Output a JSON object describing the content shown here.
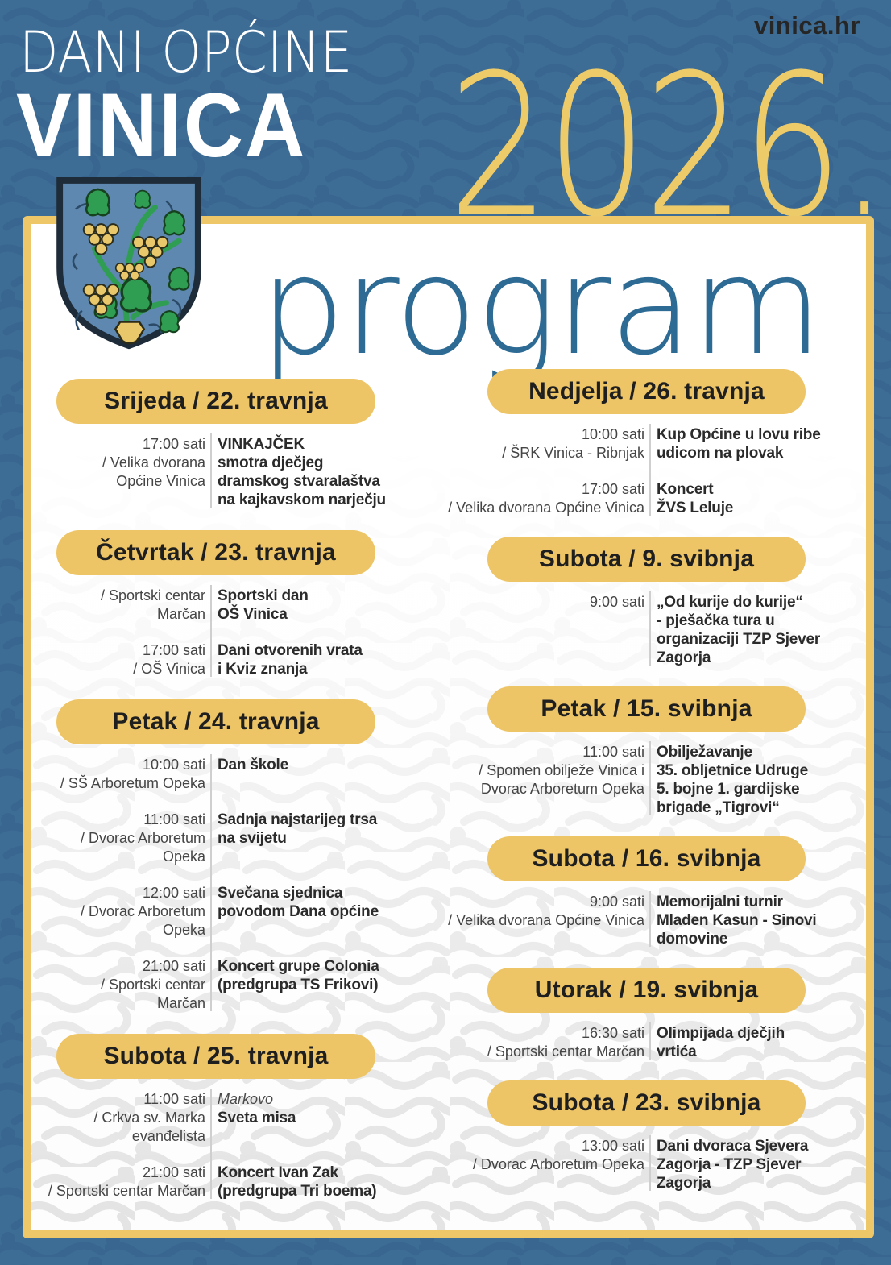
{
  "site_link": "vinica.hr",
  "header": {
    "kicker": "DANI OPĆINE",
    "title": "VINICA",
    "year": "2026.",
    "program_word": "program"
  },
  "theme": {
    "background_blue": "#3d6c95",
    "pattern_blue": "#34618b",
    "accent_yellow": "#edc566",
    "frame_yellow": "#eec768",
    "heading_blue": "#2e6b94",
    "text_dark": "#2b2b2b"
  },
  "emblem_icon": "vinica-coat-of-arms",
  "columns": {
    "left": {
      "sections": [
        {
          "date": "Srijeda / 22. travnja",
          "events": [
            {
              "time": "17:00 sati",
              "location": "/ Velika dvorana\nOpćine Vinica",
              "pretitle": "",
              "title": "VINKAJČEK\nsmotra dječjeg\ndramskog stvaralaštva\nna kajkavskom narječju"
            }
          ]
        },
        {
          "date": "Četvrtak / 23. travnja",
          "events": [
            {
              "time": "",
              "location": "/ Sportski centar\nMarčan",
              "pretitle": "",
              "title": "Sportski dan\nOŠ Vinica"
            },
            {
              "time": "17:00 sati",
              "location": "/ OŠ Vinica",
              "pretitle": "",
              "title": "Dani otvorenih vrata\ni Kviz znanja"
            }
          ]
        },
        {
          "date": "Petak / 24. travnja",
          "events": [
            {
              "time": "10:00 sati",
              "location": "/ SŠ Arboretum Opeka",
              "pretitle": "",
              "title": "Dan škole"
            },
            {
              "time": "11:00 sati",
              "location": "/ Dvorac Arboretum\nOpeka",
              "pretitle": "",
              "title": "Sadnja najstarijeg trsa\nna svijetu"
            },
            {
              "time": "12:00 sati",
              "location": "/ Dvorac Arboretum\nOpeka",
              "pretitle": "",
              "title": "Svečana sjednica\npovodom Dana općine"
            },
            {
              "time": "21:00 sati",
              "location": "/ Sportski centar\nMarčan",
              "pretitle": "",
              "title": "Koncert grupe Colonia\n(predgrupa TS Frikovi)"
            }
          ]
        },
        {
          "date": "Subota / 25. travnja",
          "events": [
            {
              "time": "11:00 sati",
              "location": "/ Crkva sv. Marka\nevanđelista",
              "pretitle": "Markovo",
              "title": "Sveta misa"
            },
            {
              "time": "21:00 sati",
              "location": "/ Sportski centar Marčan",
              "pretitle": "",
              "title": "Koncert Ivan Zak\n(predgrupa Tri boema)"
            }
          ]
        }
      ]
    },
    "right": {
      "sections": [
        {
          "date": "Nedjelja / 26. travnja",
          "events": [
            {
              "time": "10:00 sati",
              "location": "/ ŠRK Vinica - Ribnjak",
              "pretitle": "",
              "title": "Kup Općine u lovu ribe\nudicom na plovak"
            },
            {
              "time": "17:00 sati",
              "location": "/ Velika dvorana Općine Vinica",
              "pretitle": "",
              "title": "Koncert\nŽVS Leluje"
            }
          ]
        },
        {
          "date": "Subota / 9. svibnja",
          "events": [
            {
              "time": "9:00 sati",
              "location": "",
              "pretitle": "",
              "title": "„Od kurije do kurije“\n- pješačka tura u\norganizaciji TZP Sjever\nZagorja"
            }
          ]
        },
        {
          "date": "Petak / 15. svibnja",
          "events": [
            {
              "time": "11:00 sati",
              "location": "/ Spomen obilježe Vinica i\nDvorac Arboretum Opeka",
              "pretitle": "",
              "title": "Obilježavanje\n35. obljetnice Udruge\n5. bojne 1. gardijske\nbrigade „Tigrovi“"
            }
          ]
        },
        {
          "date": "Subota / 16. svibnja",
          "events": [
            {
              "time": "9:00 sati",
              "location": "/ Velika dvorana Općine Vinica",
              "pretitle": "",
              "title": "Memorijalni turnir\nMladen Kasun - Sinovi\ndomovine"
            }
          ]
        },
        {
          "date": "Utorak / 19. svibnja",
          "events": [
            {
              "time": "16:30 sati",
              "location": "/ Sportski centar Marčan",
              "pretitle": "",
              "title": "Olimpijada dječjih\nvrtića"
            }
          ]
        },
        {
          "date": "Subota / 23. svibnja",
          "events": [
            {
              "time": "13:00 sati",
              "location": "/ Dvorac Arboretum Opeka",
              "pretitle": "",
              "title": "Dani dvoraca Sjevera\nZagorja - TZP Sjever\nZagorja"
            }
          ]
        }
      ]
    }
  }
}
